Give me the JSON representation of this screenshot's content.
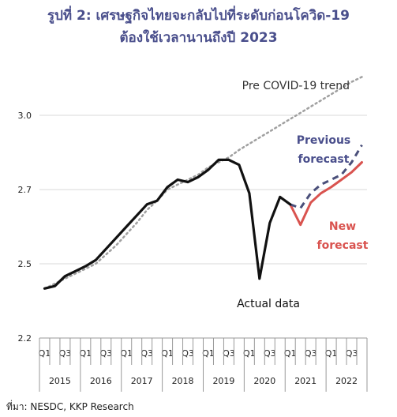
{
  "title_line1": "รูปที่ 2: เศรษฐกิจไทยจะกลับไปที่ระดับก่อนโควิด-19",
  "title_line2": "ต้องใช้เวลานานถึงปี 2023",
  "source": "ที่มา: NESDC, KKP Research",
  "colors": {
    "title": "#4a4f8c",
    "actual": "#111111",
    "trend": "#a0a0a0",
    "previous": "#4a4f7a",
    "new": "#d9534f",
    "previous_label": "#4a4f8c",
    "new_label": "#d9534f"
  },
  "chart_data": {
    "type": "line",
    "ylim": [
      2.2,
      3.1
    ],
    "yticks": [
      2.2,
      2.5,
      2.7,
      3.0
    ],
    "ytick_labels": [
      "2.2",
      "2.5",
      "2.7",
      "3.0"
    ],
    "grid": true,
    "quarters": [
      "2015Q1",
      "2015Q2",
      "2015Q3",
      "2015Q4",
      "2016Q1",
      "2016Q2",
      "2016Q3",
      "2016Q4",
      "2017Q1",
      "2017Q2",
      "2017Q3",
      "2017Q4",
      "2018Q1",
      "2018Q2",
      "2018Q3",
      "2018Q4",
      "2019Q1",
      "2019Q2",
      "2019Q3",
      "2019Q4",
      "2020Q1",
      "2020Q2",
      "2020Q3",
      "2020Q4",
      "2021Q1",
      "2021Q2",
      "2021Q3",
      "2021Q4",
      "2022Q1",
      "2022Q2",
      "2022Q3",
      "2022Q4"
    ],
    "quarter_tick_labels": [
      "Q1",
      "Q3"
    ],
    "years": [
      "2015",
      "2016",
      "2017",
      "2018",
      "2019",
      "2020",
      "2021",
      "2022"
    ],
    "series": [
      {
        "name": "Actual data",
        "start_index": 0,
        "values": [
          2.4,
          2.41,
          2.45,
          2.47,
          2.49,
          2.51,
          2.54,
          2.57,
          2.6,
          2.63,
          2.66,
          2.67,
          2.71,
          2.74,
          2.73,
          2.75,
          2.78,
          2.82,
          2.82,
          2.8,
          2.69,
          2.44,
          2.61,
          2.68,
          2.66
        ]
      },
      {
        "name": "Pre COVID-19 trend",
        "start_index": 0,
        "values": [
          2.4,
          2.42,
          2.44,
          2.46,
          2.48,
          2.5,
          2.525,
          2.55,
          2.58,
          2.61,
          2.645,
          2.67,
          2.7,
          2.72,
          2.74,
          2.76,
          2.79,
          2.81,
          2.83,
          2.86,
          2.885,
          2.91,
          2.935,
          2.96,
          2.985,
          3.01,
          3.035,
          3.06,
          3.085,
          3.11,
          3.135,
          3.155
        ]
      },
      {
        "name": "Previous forecast",
        "label_lines": [
          "Previous",
          "forecast"
        ],
        "start_index": 24,
        "values": [
          2.66,
          2.65,
          2.69,
          2.72,
          2.74,
          2.76,
          2.81,
          2.88
        ]
      },
      {
        "name": "New forecast",
        "label_lines": [
          "New",
          "forecast"
        ],
        "start_index": 24,
        "values": [
          2.66,
          2.605,
          2.665,
          2.69,
          2.71,
          2.74,
          2.77,
          2.81
        ]
      }
    ],
    "annotations": {
      "trend": "Pre COVID-19 trend",
      "actual": "Actual data"
    }
  }
}
